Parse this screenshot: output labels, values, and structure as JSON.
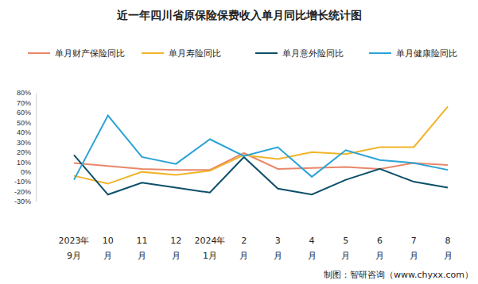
{
  "chart_data": {
    "type": "line",
    "title": "近一年四川省原保险保费收入单月同比增长统计图",
    "source": "制图：智研咨询（www.chyxx.com）",
    "categories": [
      "2023年\n9月",
      "10\n月",
      "11\n月",
      "12\n月",
      "2024年\n1月",
      "2\n月",
      "3\n月",
      "4\n月",
      "5\n月",
      "6\n月",
      "7\n月",
      "8\n月"
    ],
    "series": [
      {
        "name": "单月财产保险同比",
        "color": "#e8876a",
        "values": [
          9,
          6,
          3,
          2,
          2,
          19,
          3,
          4,
          5,
          3,
          9,
          7
        ]
      },
      {
        "name": "单月寿险同比",
        "color": "#f0b429",
        "values": [
          -4,
          -12,
          0,
          -3,
          1,
          17,
          13,
          20,
          18,
          25,
          25,
          66
        ]
      },
      {
        "name": "单月意外险同比",
        "color": "#0d4f6b",
        "values": [
          17,
          -23,
          -11,
          -16,
          -21,
          15,
          -17,
          -23,
          -8,
          3,
          -10,
          -16
        ]
      },
      {
        "name": "单月健康险同比",
        "color": "#2ba3d6",
        "values": [
          -8,
          57,
          15,
          8,
          33,
          16,
          25,
          -5,
          22,
          12,
          9,
          2
        ]
      }
    ],
    "ylim": [
      -30,
      80
    ],
    "yticks": [
      {
        "value": -30,
        "label": "-30%"
      },
      {
        "value": -20,
        "label": "-20%"
      },
      {
        "value": -10,
        "label": "-10%"
      },
      {
        "value": 0,
        "label": "0%"
      },
      {
        "value": 10,
        "label": "10%"
      },
      {
        "value": 20,
        "label": "20%"
      },
      {
        "value": 30,
        "label": "30%"
      },
      {
        "value": 40,
        "label": "40%"
      },
      {
        "value": 50,
        "label": "50%"
      },
      {
        "value": 60,
        "label": "60%"
      },
      {
        "value": 70,
        "label": "70%"
      },
      {
        "value": 80,
        "label": "80%"
      }
    ],
    "grid": false,
    "legend": "top"
  }
}
